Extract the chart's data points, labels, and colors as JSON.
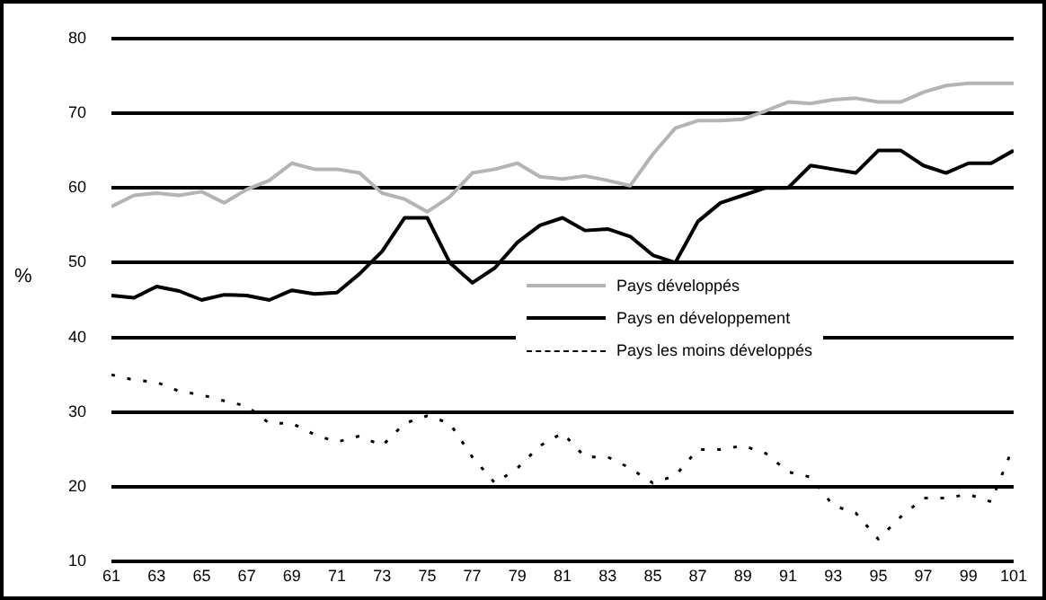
{
  "chart_data": {
    "type": "line",
    "ylabel": "%",
    "x": [
      61,
      62,
      63,
      64,
      65,
      66,
      67,
      68,
      69,
      70,
      71,
      72,
      73,
      74,
      75,
      76,
      77,
      78,
      79,
      80,
      81,
      82,
      83,
      84,
      85,
      86,
      87,
      88,
      89,
      90,
      91,
      92,
      93,
      94,
      95,
      96,
      97,
      98,
      99,
      100,
      101
    ],
    "series": [
      {
        "name": "Pays développés",
        "color": "#b4b4b4",
        "line_style": "solid",
        "values": [
          57.5,
          59,
          59.3,
          59,
          59.5,
          58,
          59.8,
          61,
          63.3,
          62.5,
          62.5,
          62,
          59.3,
          58.5,
          56.8,
          58.8,
          62,
          62.5,
          63.3,
          61.5,
          61.2,
          61.6,
          61,
          60.3,
          64.5,
          68,
          69,
          69,
          69.2,
          70.3,
          71.5,
          71.3,
          71.8,
          72,
          71.5,
          71.5,
          72.8,
          73.7,
          74,
          74,
          74
        ]
      },
      {
        "name": "Pays en développement",
        "color": "#000000",
        "line_style": "solid",
        "values": [
          45.6,
          45.3,
          46.8,
          46.2,
          45,
          45.7,
          45.6,
          45,
          46.3,
          45.8,
          46,
          48.5,
          51.5,
          56,
          56,
          50,
          47.3,
          49.3,
          52.7,
          55,
          56,
          54.3,
          54.5,
          53.5,
          51,
          50,
          55.5,
          58,
          59,
          60,
          60,
          63,
          62.5,
          62,
          65,
          65,
          63,
          62,
          63.3,
          63.3,
          65
        ]
      },
      {
        "name": "Pays les moins développés",
        "color": "#000000",
        "line_style": "dotted",
        "values": [
          35,
          34.3,
          34,
          32.8,
          32.3,
          31.5,
          30.8,
          28.5,
          28.5,
          27,
          26,
          26.8,
          25.5,
          28.5,
          29.5,
          28.5,
          24,
          20.5,
          22.5,
          25.5,
          27.2,
          24,
          24,
          22.5,
          20.5,
          21.5,
          25,
          25,
          25.5,
          24.5,
          22,
          21.3,
          17.5,
          16.5,
          13,
          16,
          18.5,
          18.5,
          19,
          18,
          25.5
        ]
      }
    ],
    "xlim": [
      61,
      101
    ],
    "xticks": [
      61,
      63,
      65,
      67,
      69,
      71,
      73,
      75,
      77,
      79,
      81,
      83,
      85,
      87,
      89,
      91,
      93,
      95,
      97,
      99,
      101
    ],
    "ylim": [
      10,
      80
    ],
    "yticks": [
      10,
      20,
      30,
      40,
      50,
      60,
      70,
      80
    ],
    "grid": "y",
    "legend": "center",
    "marker": "none"
  }
}
